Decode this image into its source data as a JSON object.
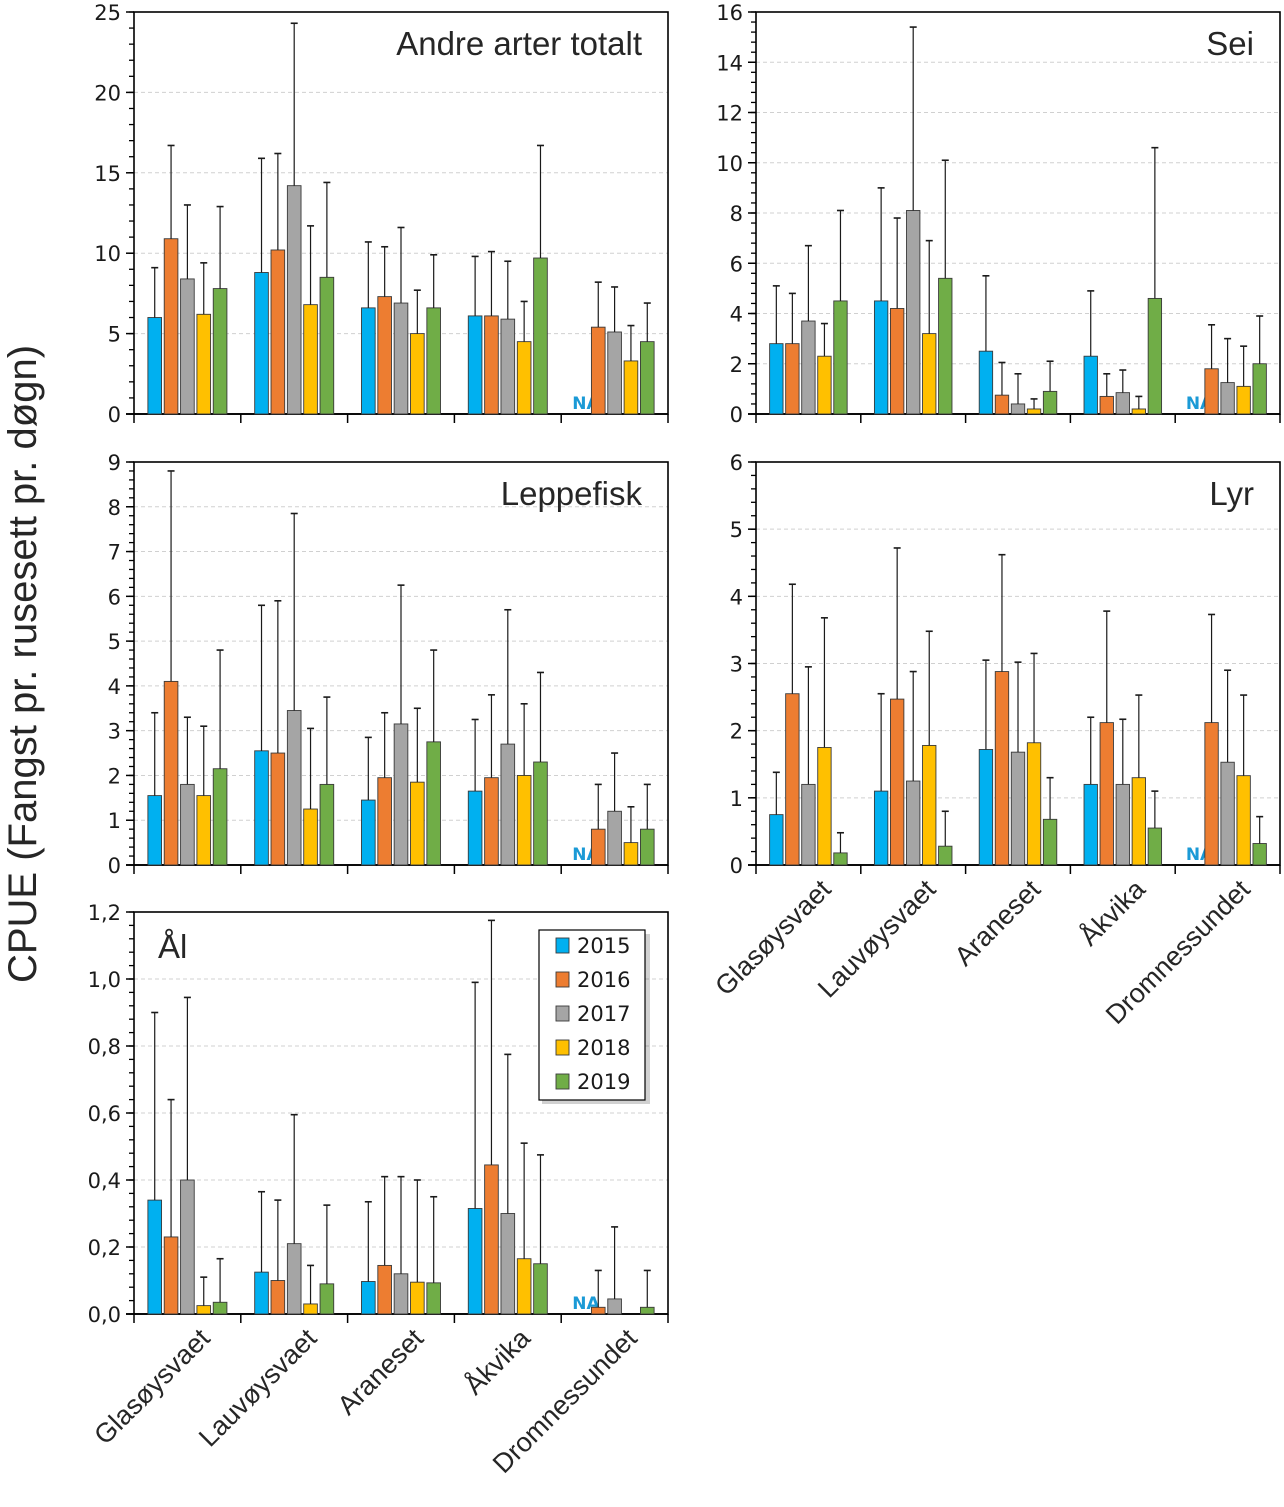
{
  "chart_data": {
    "type": "bar",
    "y_axis_title": "CPUE (Fangst pr. rusesett pr. døgn)",
    "categories": [
      "Glasøysvaet",
      "Lauvøysvaet",
      "Araneset",
      "Åkvika",
      "Dromnessundet"
    ],
    "na_label": "NA",
    "legend": {
      "placement": "inside Ål panel, top-right",
      "entries": [
        {
          "name": "2015",
          "color": "#00b0f0"
        },
        {
          "name": "2016",
          "color": "#ed7d31"
        },
        {
          "name": "2017",
          "color": "#a5a5a5"
        },
        {
          "name": "2018",
          "color": "#ffc000"
        },
        {
          "name": "2019",
          "color": "#70ad47"
        }
      ]
    },
    "error_bars": "upper only",
    "grid": "horizontal dashed",
    "panels": [
      {
        "title": "Andre arter totalt",
        "title_position": "top-right",
        "ylim": [
          0,
          25
        ],
        "yticks": [
          "0",
          "5",
          "10",
          "15",
          "20",
          "25"
        ],
        "ytick_values": [
          0,
          5,
          10,
          15,
          20,
          25
        ],
        "minor_step": 1,
        "show_xlabels": false,
        "series": [
          {
            "name": "2015",
            "values": [
              6.0,
              8.8,
              6.6,
              6.1,
              null
            ],
            "err_top": [
              9.1,
              15.9,
              10.7,
              9.8,
              null
            ]
          },
          {
            "name": "2016",
            "values": [
              10.9,
              10.2,
              7.3,
              6.1,
              5.4
            ],
            "err_top": [
              16.7,
              16.2,
              10.4,
              10.1,
              8.2
            ]
          },
          {
            "name": "2017",
            "values": [
              8.4,
              14.2,
              6.9,
              5.9,
              5.1
            ],
            "err_top": [
              13.0,
              24.3,
              11.6,
              9.5,
              7.9
            ]
          },
          {
            "name": "2018",
            "values": [
              6.2,
              6.8,
              5.0,
              4.5,
              3.3
            ],
            "err_top": [
              9.4,
              11.7,
              7.7,
              7.0,
              5.5
            ]
          },
          {
            "name": "2019",
            "values": [
              7.8,
              8.5,
              6.6,
              9.7,
              4.5
            ],
            "err_top": [
              12.9,
              14.4,
              9.9,
              16.7,
              6.9
            ]
          }
        ]
      },
      {
        "title": "Sei",
        "title_position": "top-right",
        "ylim": [
          0,
          16
        ],
        "yticks": [
          "0",
          "2",
          "4",
          "6",
          "8",
          "10",
          "12",
          "14",
          "16"
        ],
        "ytick_values": [
          0,
          2,
          4,
          6,
          8,
          10,
          12,
          14,
          16
        ],
        "minor_step": 0.4,
        "show_xlabels": false,
        "series": [
          {
            "name": "2015",
            "values": [
              2.8,
              4.5,
              2.5,
              2.3,
              null
            ],
            "err_top": [
              5.1,
              9.0,
              5.5,
              4.9,
              null
            ]
          },
          {
            "name": "2016",
            "values": [
              2.8,
              4.2,
              0.75,
              0.7,
              1.8
            ],
            "err_top": [
              4.8,
              7.8,
              2.05,
              1.6,
              3.55
            ]
          },
          {
            "name": "2017",
            "values": [
              3.7,
              8.1,
              0.4,
              0.85,
              1.25
            ],
            "err_top": [
              6.7,
              15.4,
              1.6,
              1.75,
              3.0
            ]
          },
          {
            "name": "2018",
            "values": [
              2.3,
              3.2,
              0.2,
              0.2,
              1.1
            ],
            "err_top": [
              3.6,
              6.9,
              0.6,
              0.7,
              2.7
            ]
          },
          {
            "name": "2019",
            "values": [
              4.5,
              5.4,
              0.9,
              4.6,
              2.0
            ],
            "err_top": [
              8.1,
              10.1,
              2.1,
              10.6,
              3.9
            ]
          }
        ]
      },
      {
        "title": "Leppefisk",
        "title_position": "top-right",
        "ylim": [
          0,
          9
        ],
        "yticks": [
          "0",
          "1",
          "2",
          "3",
          "4",
          "5",
          "6",
          "7",
          "8",
          "9"
        ],
        "ytick_values": [
          0,
          1,
          2,
          3,
          4,
          5,
          6,
          7,
          8,
          9
        ],
        "minor_step": 0.2,
        "show_xlabels": false,
        "series": [
          {
            "name": "2015",
            "values": [
              1.55,
              2.55,
              1.45,
              1.65,
              null
            ],
            "err_top": [
              3.4,
              5.8,
              2.85,
              3.25,
              null
            ]
          },
          {
            "name": "2016",
            "values": [
              4.1,
              2.5,
              1.95,
              1.95,
              0.8
            ],
            "err_top": [
              8.8,
              5.9,
              3.4,
              3.8,
              1.8
            ]
          },
          {
            "name": "2017",
            "values": [
              1.8,
              3.45,
              3.15,
              2.7,
              1.2
            ],
            "err_top": [
              3.3,
              7.85,
              6.25,
              5.7,
              2.5
            ]
          },
          {
            "name": "2018",
            "values": [
              1.55,
              1.25,
              1.85,
              2.0,
              0.5
            ],
            "err_top": [
              3.1,
              3.05,
              3.5,
              3.6,
              1.3
            ]
          },
          {
            "name": "2019",
            "values": [
              2.15,
              1.8,
              2.75,
              2.3,
              0.8
            ],
            "err_top": [
              4.8,
              3.75,
              4.8,
              4.3,
              1.8
            ]
          }
        ]
      },
      {
        "title": "Lyr",
        "title_position": "top-right",
        "ylim": [
          0,
          6
        ],
        "yticks": [
          "0",
          "1",
          "2",
          "3",
          "4",
          "5",
          "6"
        ],
        "ytick_values": [
          0,
          1,
          2,
          3,
          4,
          5,
          6
        ],
        "minor_step": 0.2,
        "show_xlabels": true,
        "series": [
          {
            "name": "2015",
            "values": [
              0.75,
              1.1,
              1.72,
              1.2,
              null
            ],
            "err_top": [
              1.38,
              2.55,
              3.05,
              2.2,
              null
            ]
          },
          {
            "name": "2016",
            "values": [
              2.55,
              2.47,
              2.88,
              2.12,
              2.12
            ],
            "err_top": [
              4.18,
              4.72,
              4.62,
              3.78,
              3.73
            ]
          },
          {
            "name": "2017",
            "values": [
              1.2,
              1.25,
              1.68,
              1.2,
              1.53
            ],
            "err_top": [
              2.95,
              2.88,
              3.02,
              2.17,
              2.9
            ]
          },
          {
            "name": "2018",
            "values": [
              1.75,
              1.78,
              1.82,
              1.3,
              1.33
            ],
            "err_top": [
              3.68,
              3.48,
              3.15,
              2.53,
              2.53
            ]
          },
          {
            "name": "2019",
            "values": [
              0.18,
              0.28,
              0.68,
              0.55,
              0.32
            ],
            "err_top": [
              0.48,
              0.8,
              1.3,
              1.1,
              0.72
            ]
          }
        ]
      },
      {
        "title": "Ål",
        "title_position": "top-left",
        "ylim": [
          0,
          1.2
        ],
        "yticks": [
          "0,0",
          "0,2",
          "0,4",
          "0,6",
          "0,8",
          "1,0",
          "1,2"
        ],
        "ytick_values": [
          0,
          0.2,
          0.4,
          0.6,
          0.8,
          1.0,
          1.2
        ],
        "minor_step": 0.04,
        "show_xlabels": true,
        "series": [
          {
            "name": "2015",
            "values": [
              0.34,
              0.125,
              0.097,
              0.315,
              null
            ],
            "err_top": [
              0.9,
              0.365,
              0.335,
              0.99,
              null
            ]
          },
          {
            "name": "2016",
            "values": [
              0.23,
              0.1,
              0.145,
              0.445,
              0.02
            ],
            "err_top": [
              0.64,
              0.34,
              0.41,
              1.175,
              0.13
            ]
          },
          {
            "name": "2017",
            "values": [
              0.4,
              0.21,
              0.12,
              0.3,
              0.045
            ],
            "err_top": [
              0.945,
              0.595,
              0.41,
              0.775,
              0.26
            ]
          },
          {
            "name": "2018",
            "values": [
              0.025,
              0.03,
              0.095,
              0.165,
              0
            ],
            "err_top": [
              0.11,
              0.145,
              0.4,
              0.51,
              null
            ]
          },
          {
            "name": "2019",
            "values": [
              0.035,
              0.09,
              0.093,
              0.15,
              0.02
            ],
            "err_top": [
              0.165,
              0.325,
              0.35,
              0.475,
              0.13
            ]
          }
        ]
      }
    ]
  }
}
